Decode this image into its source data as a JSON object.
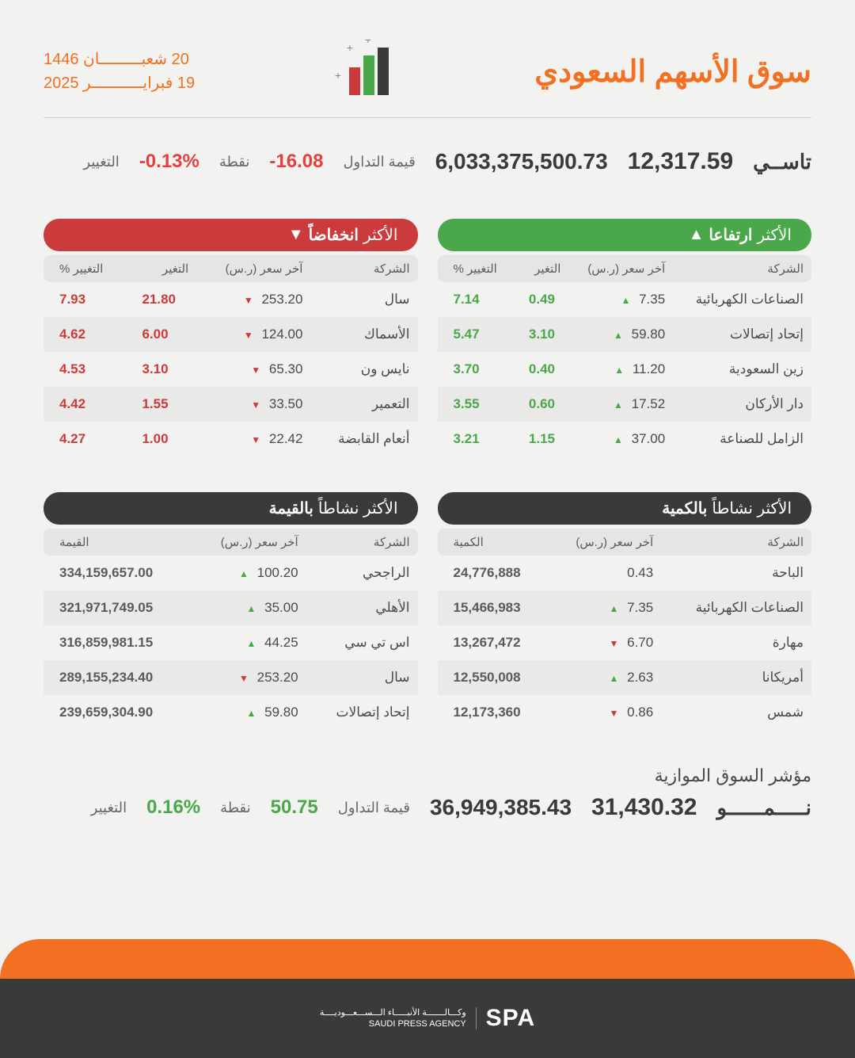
{
  "title": "سوق الأسهم السعودي",
  "dates": {
    "hijri": "20 شعبـــــــــان 1446",
    "greg": "19 فبرايـــــــــــر 2025"
  },
  "colors": {
    "accent": "#f36f21",
    "up": "#4aa84a",
    "down": "#cc3b3b",
    "dark": "#3a3a3a",
    "bg": "#f2f2f0"
  },
  "tasi": {
    "name": "تاســي",
    "value": "12,317.59",
    "trade_label": "قيمة التداول",
    "trade_value": "6,033,375,500.73",
    "points": "-16.08",
    "points_label": "نقطة",
    "pct": "-0.13%",
    "pct_label": "التغيير"
  },
  "headers": {
    "company": "الشركة",
    "last_price": "آخر سعر (ر.س)",
    "change": "التغير",
    "change_pct": "التغيير %",
    "volume": "الكمية",
    "value": "القيمة"
  },
  "gainers": {
    "title_pre": "الأكثر",
    "title_bold": "ارتفاعا",
    "rows": [
      {
        "company": "الصناعات الكهربائية",
        "price": "7.35",
        "dir": "up",
        "change": "0.49",
        "pct": "7.14"
      },
      {
        "company": "إتحاد إتصالات",
        "price": "59.80",
        "dir": "up",
        "change": "3.10",
        "pct": "5.47"
      },
      {
        "company": "زين السعودية",
        "price": "11.20",
        "dir": "up",
        "change": "0.40",
        "pct": "3.70"
      },
      {
        "company": "دار الأركان",
        "price": "17.52",
        "dir": "up",
        "change": "0.60",
        "pct": "3.55"
      },
      {
        "company": "الزامل للصناعة",
        "price": "37.00",
        "dir": "up",
        "change": "1.15",
        "pct": "3.21"
      }
    ]
  },
  "losers": {
    "title_pre": "الأكثر",
    "title_bold": "انخفاضاً",
    "rows": [
      {
        "company": "سال",
        "price": "253.20",
        "dir": "down",
        "change": "21.80",
        "pct": "7.93"
      },
      {
        "company": "الأسماك",
        "price": "124.00",
        "dir": "down",
        "change": "6.00",
        "pct": "4.62"
      },
      {
        "company": "نايس ون",
        "price": "65.30",
        "dir": "down",
        "change": "3.10",
        "pct": "4.53"
      },
      {
        "company": "التعمير",
        "price": "33.50",
        "dir": "down",
        "change": "1.55",
        "pct": "4.42"
      },
      {
        "company": "أنعام القابضة",
        "price": "22.42",
        "dir": "down",
        "change": "1.00",
        "pct": "4.27"
      }
    ]
  },
  "by_volume": {
    "title_pre": "الأكثر نشاطاً",
    "title_bold": "بالكمية",
    "rows": [
      {
        "company": "الباحة",
        "price": "0.43",
        "dir": "",
        "volume": "24,776,888"
      },
      {
        "company": "الصناعات الكهربائية",
        "price": "7.35",
        "dir": "up",
        "volume": "15,466,983"
      },
      {
        "company": "مهارة",
        "price": "6.70",
        "dir": "down",
        "volume": "13,267,472"
      },
      {
        "company": "أمريكانا",
        "price": "2.63",
        "dir": "up",
        "volume": "12,550,008"
      },
      {
        "company": "شمس",
        "price": "0.86",
        "dir": "down",
        "volume": "12,173,360"
      }
    ]
  },
  "by_value": {
    "title_pre": "الأكثر نشاطاً",
    "title_bold": "بالقيمة",
    "rows": [
      {
        "company": "الراجحي",
        "price": "100.20",
        "dir": "up",
        "value": "334,159,657.00"
      },
      {
        "company": "الأهلي",
        "price": "35.00",
        "dir": "up",
        "value": "321,971,749.05"
      },
      {
        "company": "اس تي سي",
        "price": "44.25",
        "dir": "up",
        "value": "316,859,981.15"
      },
      {
        "company": "سال",
        "price": "253.20",
        "dir": "down",
        "value": "289,155,234.40"
      },
      {
        "company": "إتحاد إتصالات",
        "price": "59.80",
        "dir": "up",
        "value": "239,659,304.90"
      }
    ]
  },
  "nomu": {
    "section": "مؤشر السوق الموازية",
    "name": "نـــــمــــــو",
    "value": "31,430.32",
    "trade_value": "36,949,385.43",
    "points": "50.75",
    "pct": "0.16%"
  },
  "footer": {
    "agency_ar": "وكـــالـــــــة الأنبـــــاء الـــســـعـــوديــــة",
    "agency_en": "SAUDI PRESS AGENCY",
    "mark": "SPA"
  }
}
